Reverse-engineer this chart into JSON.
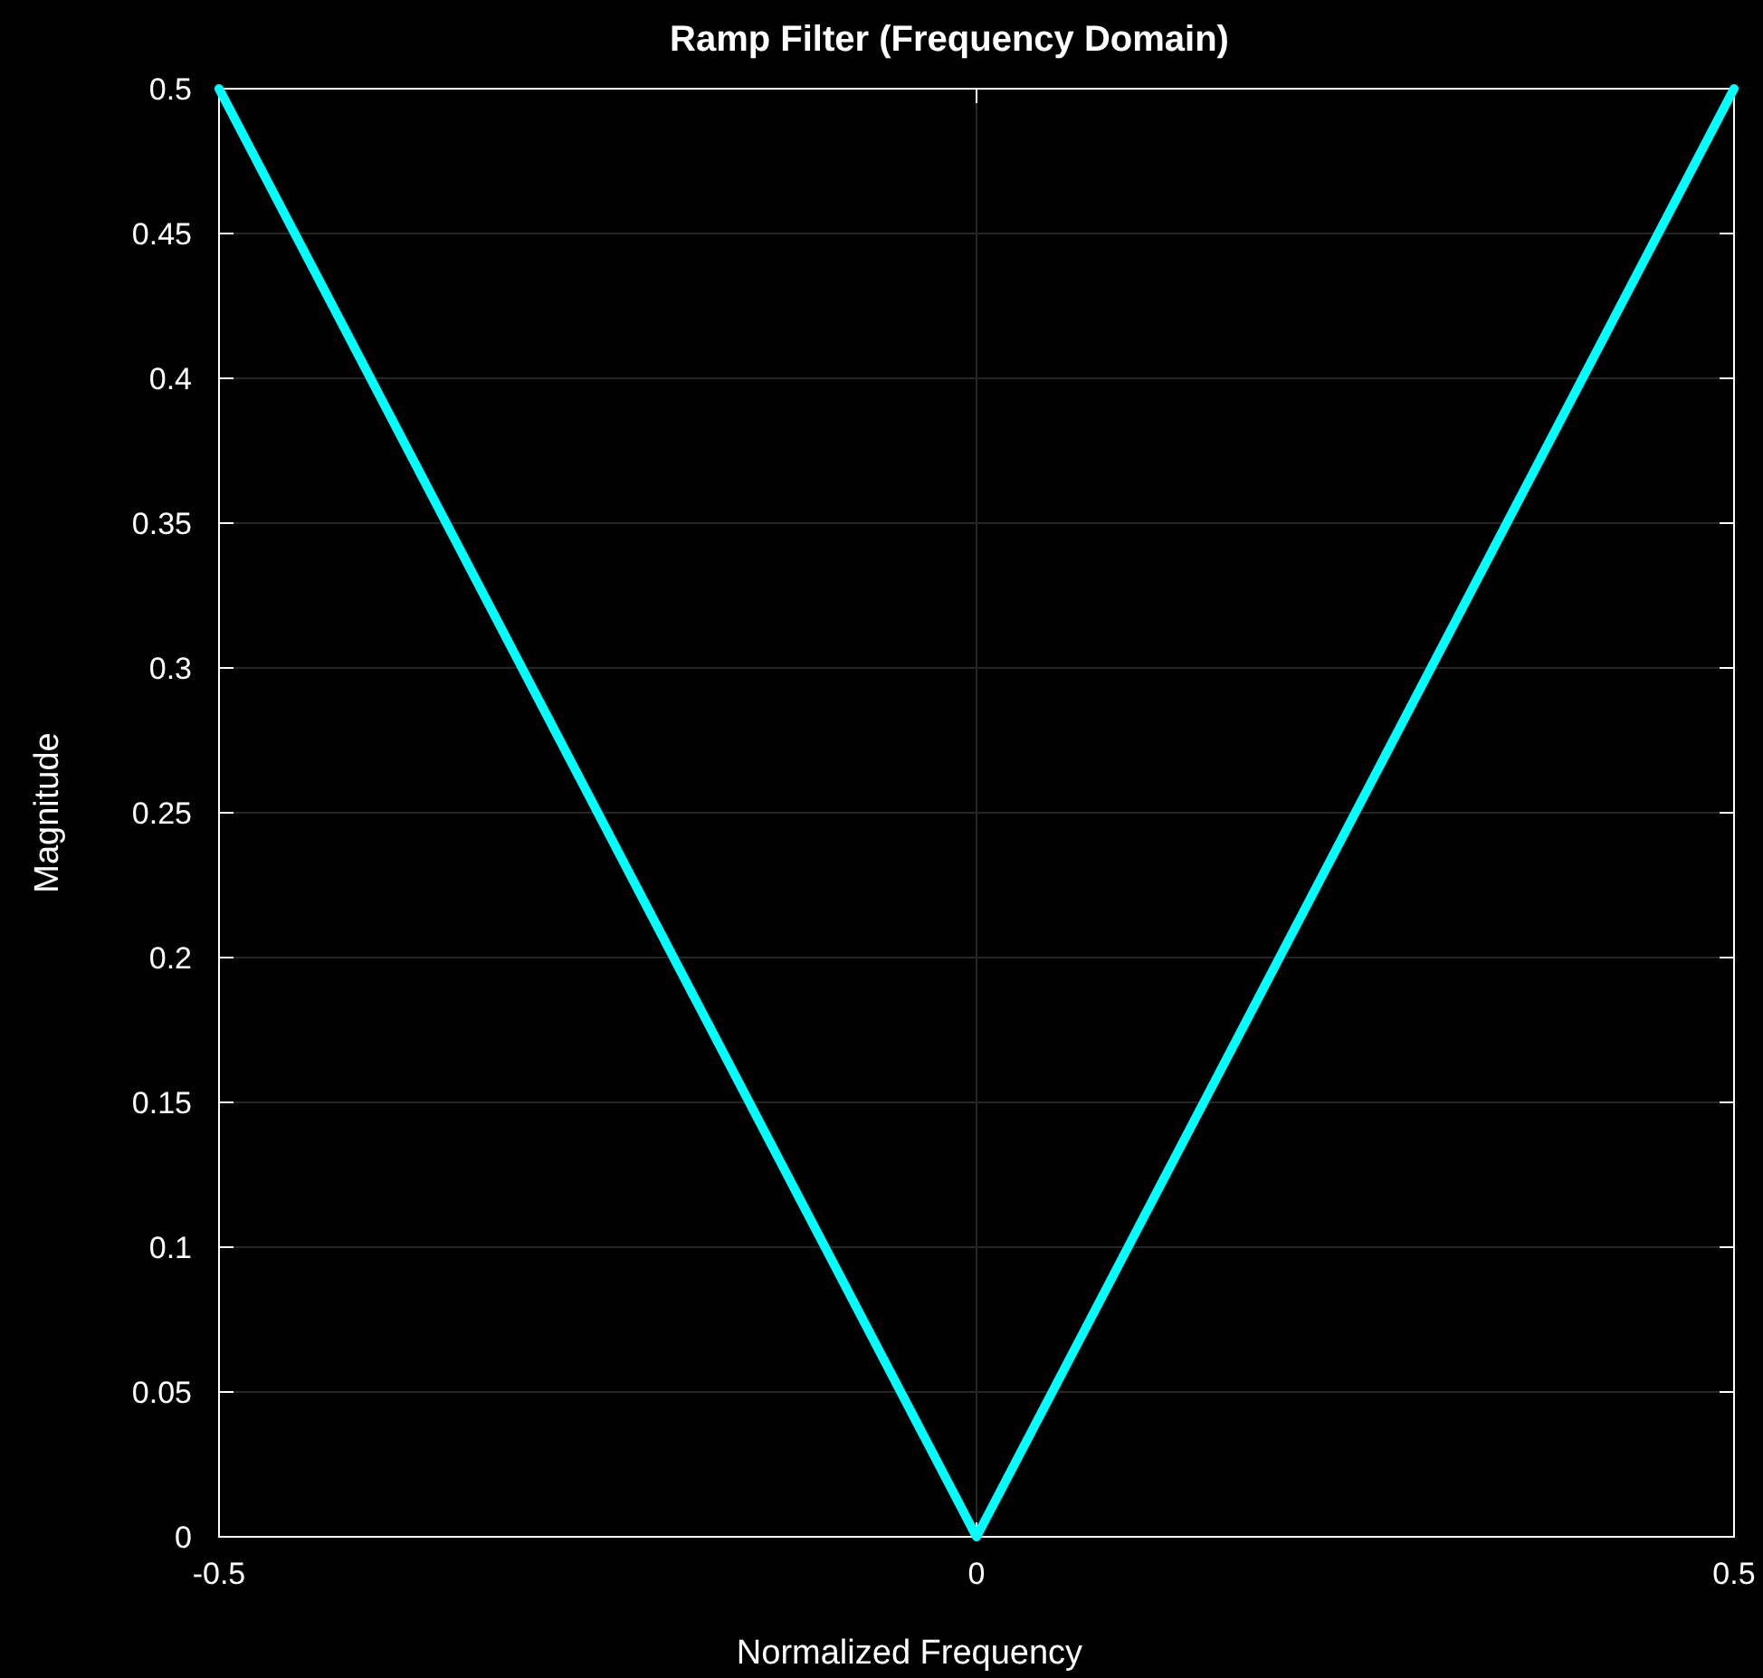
{
  "chart_data": {
    "type": "line",
    "title": "Ramp Filter (Frequency Domain)",
    "xlabel": "Normalized Frequency",
    "ylabel": "Magnitude",
    "x": [
      -0.5,
      0,
      0.5
    ],
    "series": [
      {
        "color": "#00ffff",
        "values": [
          0.5,
          0,
          0.5
        ]
      }
    ],
    "xlim": [
      -0.5,
      0.5
    ],
    "xticks": [
      -0.5,
      0,
      0.5
    ],
    "ylim": [
      0,
      0.5
    ],
    "yticks": [
      0,
      0.05,
      0.1,
      0.15,
      0.2,
      0.25,
      0.3,
      0.35,
      0.4,
      0.45,
      0.5
    ],
    "grid": true,
    "marker": "none",
    "line_style": "solid"
  }
}
